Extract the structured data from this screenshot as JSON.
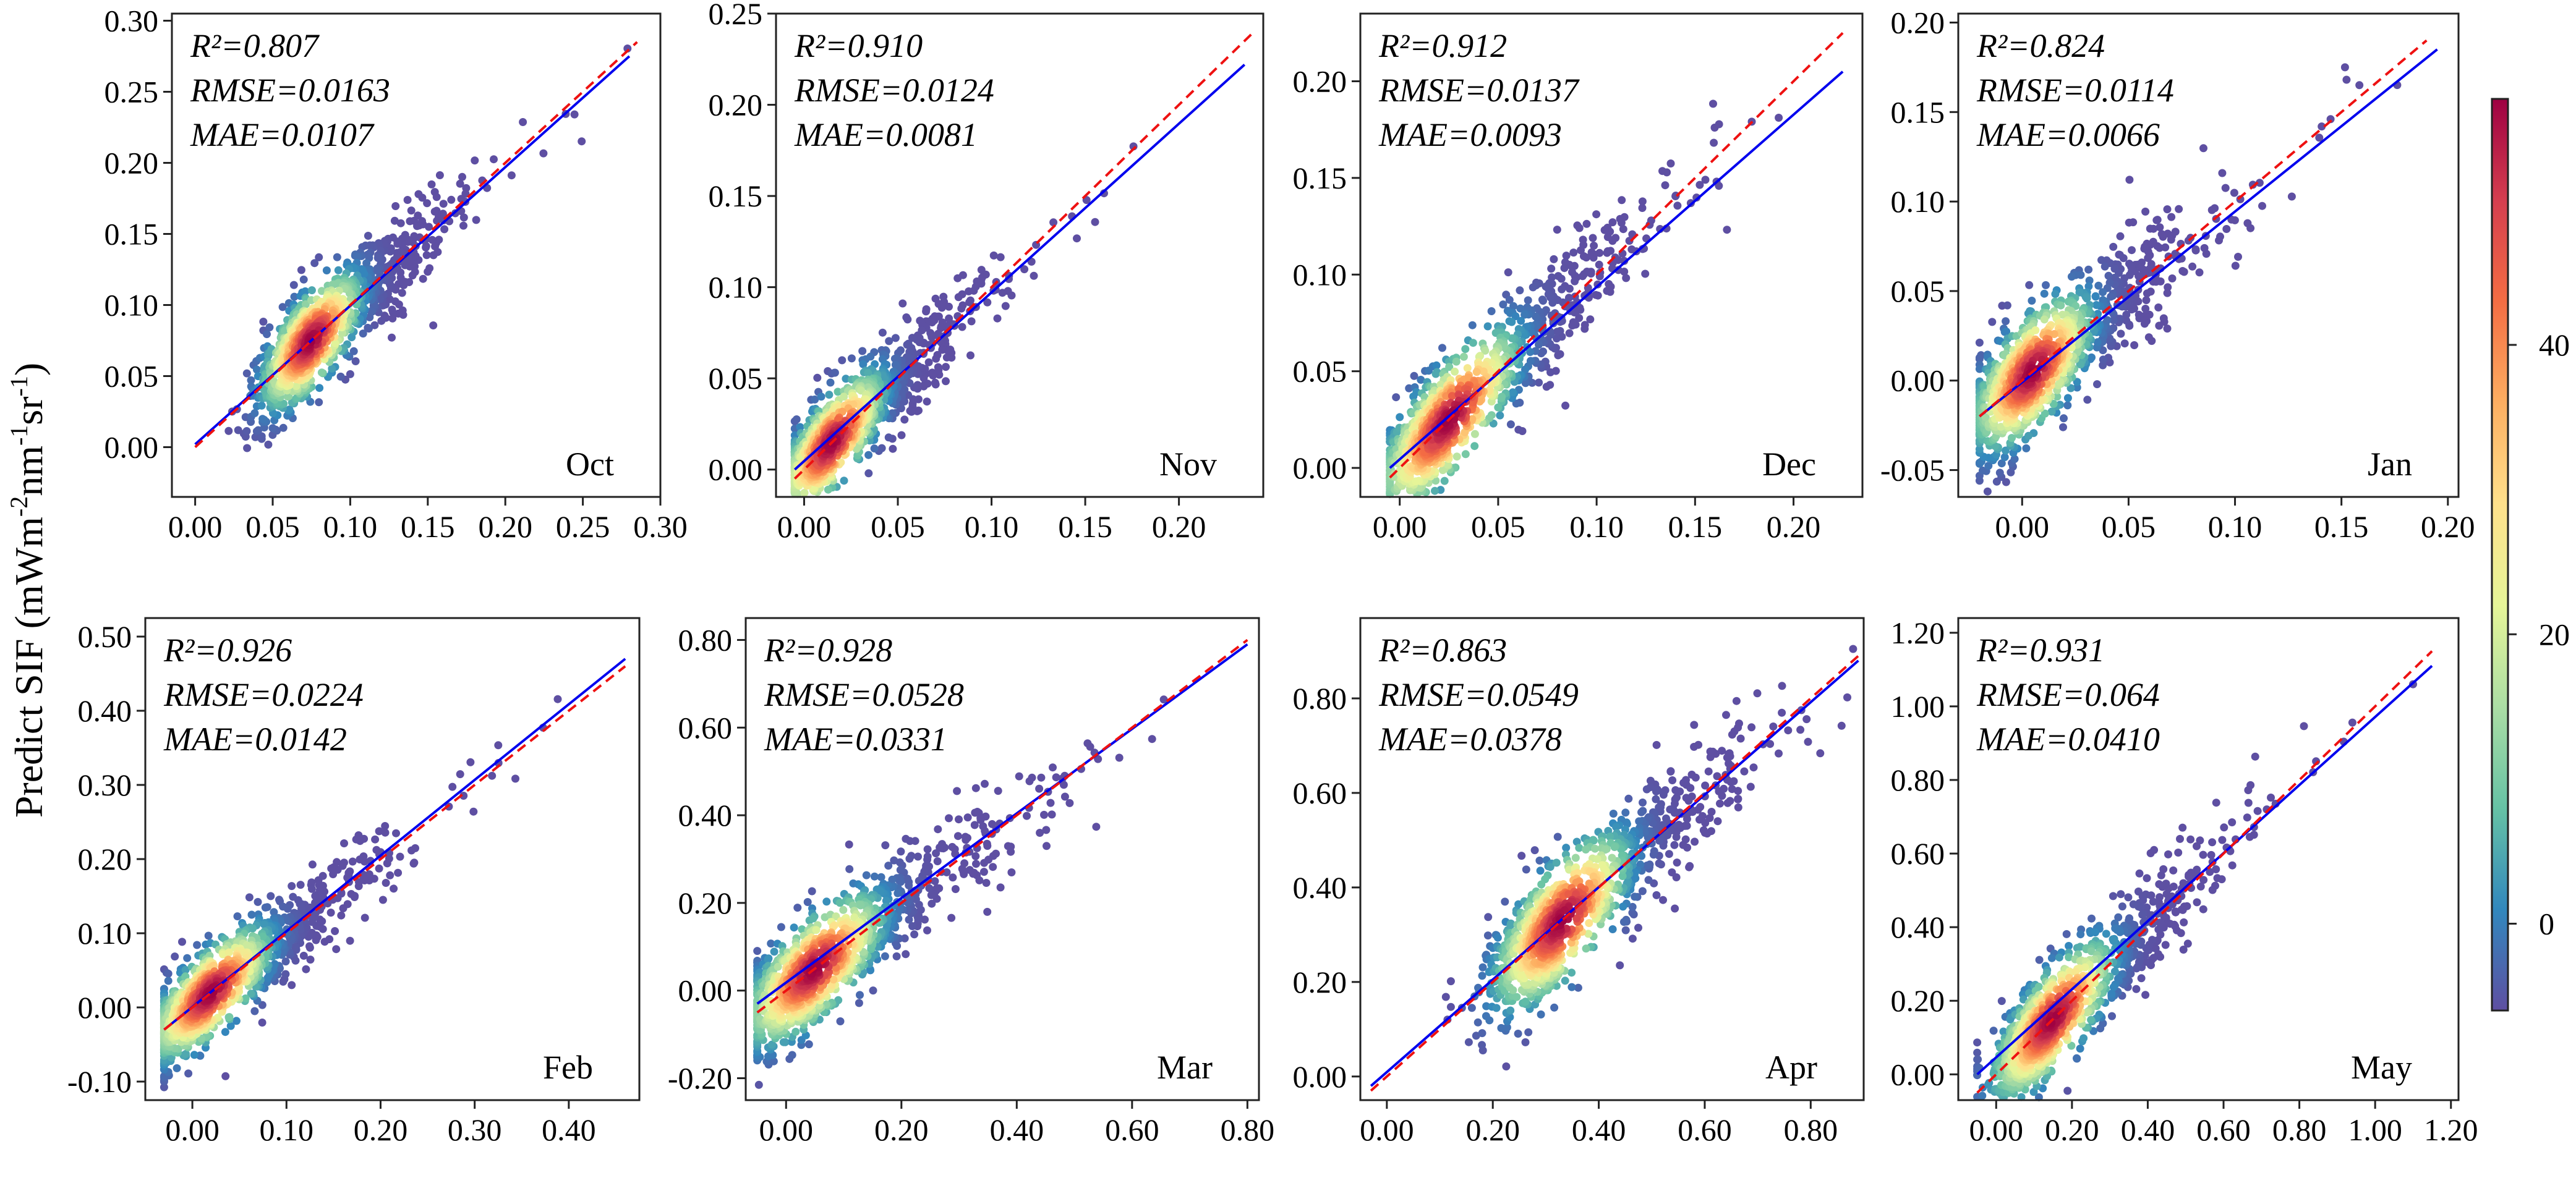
{
  "figure": {
    "ylabel_main": "Predict SIF (mWm",
    "ylabel_sup1": "-2",
    "ylabel_mid": "nm",
    "ylabel_sup2": "-1",
    "ylabel_tail": "sr",
    "ylabel_sup3": "-1",
    "ylabel_end": ")"
  },
  "colorbar": {
    "ticks": [
      "0",
      "20",
      "40"
    ],
    "tick_values": [
      0,
      20,
      40
    ],
    "range": [
      -6,
      57
    ],
    "colors": [
      "#5e4fa2",
      "#3288bd",
      "#66c2a5",
      "#abdda4",
      "#e6f598",
      "#fee08b",
      "#fdae61",
      "#f46d43",
      "#d53e4f",
      "#9e0142"
    ]
  },
  "chart_data": [
    {
      "type": "scatter",
      "month": "Oct",
      "stats": [
        "R²=0.807",
        "RMSE=0.0163",
        "MAE=0.0107"
      ],
      "xlim": [
        -0.015,
        0.3
      ],
      "ylim": [
        -0.035,
        0.305
      ],
      "xticks": [
        "0.00",
        "0.05",
        "0.10",
        "0.15",
        "0.20",
        "0.25",
        "0.30"
      ],
      "xtick_values": [
        0,
        0.05,
        0.1,
        0.15,
        0.2,
        0.25,
        0.3
      ],
      "yticks": [
        "0.00",
        "0.05",
        "0.10",
        "0.15",
        "0.20",
        "0.25",
        "0.30"
      ],
      "ytick_values": [
        0,
        0.05,
        0.1,
        0.15,
        0.2,
        0.25,
        0.3
      ],
      "fit_line": [
        [
          0.0,
          0.002
        ],
        [
          0.28,
          0.275
        ]
      ],
      "one_to_one": [
        [
          0.0,
          0.0
        ],
        [
          0.285,
          0.285
        ]
      ],
      "center": 0.075,
      "spread": 0.04,
      "noise": 0.017,
      "dmin": -0.01,
      "dmax": 0.28
    },
    {
      "type": "scatter",
      "month": "Nov",
      "stats": [
        "R²=0.910",
        "RMSE=0.0124",
        "MAE=0.0081"
      ],
      "xlim": [
        -0.015,
        0.245
      ],
      "ylim": [
        -0.015,
        0.25
      ],
      "xticks": [
        "0.00",
        "0.05",
        "0.10",
        "0.15",
        "0.20"
      ],
      "xtick_values": [
        0,
        0.05,
        0.1,
        0.15,
        0.2
      ],
      "yticks": [
        "0.00",
        "0.05",
        "0.10",
        "0.15",
        "0.20",
        "0.25"
      ],
      "ytick_values": [
        0,
        0.05,
        0.1,
        0.15,
        0.2,
        0.25
      ],
      "fit_line": [
        [
          -0.005,
          0.0
        ],
        [
          0.235,
          0.222
        ]
      ],
      "one_to_one": [
        [
          -0.005,
          -0.005
        ],
        [
          0.24,
          0.24
        ]
      ],
      "center": 0.015,
      "spread": 0.035,
      "noise": 0.013,
      "dmin": -0.005,
      "dmax": 0.235
    },
    {
      "type": "scatter",
      "month": "Dec",
      "stats": [
        "R²=0.912",
        "RMSE=0.0137",
        "MAE=0.0093"
      ],
      "xlim": [
        -0.02,
        0.235
      ],
      "ylim": [
        -0.015,
        0.235
      ],
      "xticks": [
        "0.00",
        "0.05",
        "0.10",
        "0.15",
        "0.20"
      ],
      "xtick_values": [
        0,
        0.05,
        0.1,
        0.15,
        0.2
      ],
      "yticks": [
        "0.00",
        "0.05",
        "0.10",
        "0.15",
        "0.20"
      ],
      "ytick_values": [
        0,
        0.05,
        0.1,
        0.15,
        0.2
      ],
      "fit_line": [
        [
          -0.005,
          0.0
        ],
        [
          0.225,
          0.205
        ]
      ],
      "one_to_one": [
        [
          -0.005,
          -0.005
        ],
        [
          0.225,
          0.225
        ]
      ],
      "center": 0.025,
      "spread": 0.045,
      "noise": 0.015,
      "dmin": -0.005,
      "dmax": 0.225
    },
    {
      "type": "scatter",
      "month": "Jan",
      "stats": [
        "R²=0.824",
        "RMSE=0.0114",
        "MAE=0.0066"
      ],
      "xlim": [
        -0.03,
        0.205
      ],
      "ylim": [
        -0.065,
        0.205
      ],
      "xticks": [
        "0.00",
        "0.05",
        "0.10",
        "0.15",
        "0.20"
      ],
      "xtick_values": [
        0,
        0.05,
        0.1,
        0.15,
        0.2
      ],
      "yticks": [
        "-0.05",
        "0.00",
        "0.05",
        "0.10",
        "0.15",
        "0.20"
      ],
      "ytick_values": [
        -0.05,
        0,
        0.05,
        0.1,
        0.15,
        0.2
      ],
      "fit_line": [
        [
          -0.02,
          -0.02
        ],
        [
          0.195,
          0.185
        ]
      ],
      "one_to_one": [
        [
          -0.02,
          -0.02
        ],
        [
          0.19,
          0.19
        ]
      ],
      "center": 0.005,
      "spread": 0.035,
      "noise": 0.016,
      "dmin": -0.02,
      "dmax": 0.19
    },
    {
      "type": "scatter",
      "month": "Feb",
      "stats": [
        "R²=0.926",
        "RMSE=0.0224",
        "MAE=0.0142"
      ],
      "xlim": [
        -0.05,
        0.475
      ],
      "ylim": [
        -0.125,
        0.525
      ],
      "xticks": [
        "0.00",
        "0.10",
        "0.20",
        "0.30",
        "0.40"
      ],
      "xtick_values": [
        0,
        0.1,
        0.2,
        0.3,
        0.4
      ],
      "yticks": [
        "-0.10",
        "0.00",
        "0.10",
        "0.20",
        "0.30",
        "0.40",
        "0.50"
      ],
      "ytick_values": [
        -0.1,
        0,
        0.1,
        0.2,
        0.3,
        0.4,
        0.5
      ],
      "fit_line": [
        [
          -0.03,
          -0.03
        ],
        [
          0.46,
          0.47
        ]
      ],
      "one_to_one": [
        [
          -0.03,
          -0.03
        ],
        [
          0.46,
          0.46
        ]
      ],
      "center": 0.02,
      "spread": 0.08,
      "noise": 0.03,
      "dmin": -0.03,
      "dmax": 0.46
    },
    {
      "type": "scatter",
      "month": "Mar",
      "stats": [
        "R²=0.928",
        "RMSE=0.0528",
        "MAE=0.0331"
      ],
      "xlim": [
        -0.07,
        0.82
      ],
      "ylim": [
        -0.25,
        0.85
      ],
      "xticks": [
        "0.00",
        "0.20",
        "0.40",
        "0.60",
        "0.80"
      ],
      "xtick_values": [
        0,
        0.2,
        0.4,
        0.6,
        0.8
      ],
      "yticks": [
        "-0.20",
        "0.00",
        "0.20",
        "0.40",
        "0.60",
        "0.80"
      ],
      "ytick_values": [
        -0.2,
        0,
        0.2,
        0.4,
        0.6,
        0.8
      ],
      "fit_line": [
        [
          -0.05,
          -0.03
        ],
        [
          0.8,
          0.79
        ]
      ],
      "one_to_one": [
        [
          -0.05,
          -0.05
        ],
        [
          0.8,
          0.8
        ]
      ],
      "center": 0.05,
      "spread": 0.15,
      "noise": 0.06,
      "dmin": -0.05,
      "dmax": 0.78
    },
    {
      "type": "scatter",
      "month": "Apr",
      "stats": [
        "R²=0.863",
        "RMSE=0.0549",
        "MAE=0.0378"
      ],
      "xlim": [
        -0.05,
        0.9
      ],
      "ylim": [
        -0.05,
        0.97
      ],
      "xticks": [
        "0.00",
        "0.20",
        "0.40",
        "0.60",
        "0.80"
      ],
      "xtick_values": [
        0,
        0.2,
        0.4,
        0.6,
        0.8
      ],
      "yticks": [
        "0.00",
        "0.20",
        "0.40",
        "0.60",
        "0.80"
      ],
      "ytick_values": [
        0,
        0.2,
        0.4,
        0.6,
        0.8
      ],
      "fit_line": [
        [
          -0.03,
          -0.02
        ],
        [
          0.89,
          0.88
        ]
      ],
      "one_to_one": [
        [
          -0.03,
          -0.03
        ],
        [
          0.89,
          0.89
        ]
      ],
      "center": 0.33,
      "spread": 0.16,
      "noise": 0.065,
      "dmin": -0.02,
      "dmax": 0.88
    },
    {
      "type": "scatter",
      "month": "May",
      "stats": [
        "R²=0.931",
        "RMSE=0.064",
        "MAE=0.0410"
      ],
      "xlim": [
        -0.1,
        1.22
      ],
      "ylim": [
        -0.07,
        1.24
      ],
      "xticks": [
        "0.00",
        "0.20",
        "0.40",
        "0.60",
        "0.80",
        "1.00",
        "1.20"
      ],
      "xtick_values": [
        0,
        0.2,
        0.4,
        0.6,
        0.8,
        1.0,
        1.2
      ],
      "yticks": [
        "0.00",
        "0.20",
        "0.40",
        "0.60",
        "0.80",
        "1.00",
        "1.20"
      ],
      "ytick_values": [
        0,
        0.2,
        0.4,
        0.6,
        0.8,
        1.0,
        1.2
      ],
      "fit_line": [
        [
          -0.05,
          0.0
        ],
        [
          1.15,
          1.11
        ]
      ],
      "one_to_one": [
        [
          -0.05,
          -0.05
        ],
        [
          1.15,
          1.15
        ]
      ],
      "center": 0.15,
      "spread": 0.2,
      "noise": 0.07,
      "dmin": -0.05,
      "dmax": 1.1
    }
  ]
}
